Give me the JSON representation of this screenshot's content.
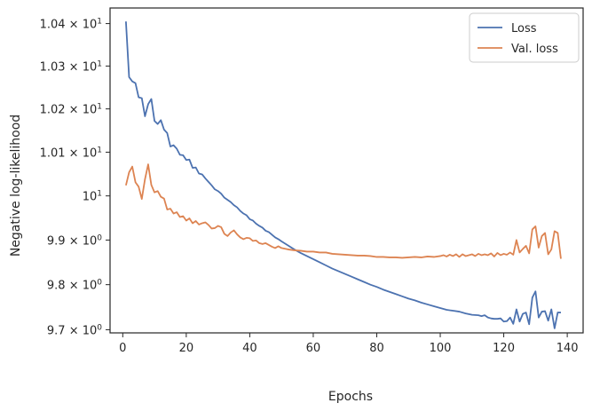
{
  "chart_data": {
    "type": "line",
    "title": "",
    "xlabel": "Epochs",
    "ylabel": "Negative log-likelihood",
    "y_scale": "log",
    "xlim": [
      -4,
      145
    ],
    "ylim": [
      9.693,
      10.437
    ],
    "x_ticks": [
      0,
      20,
      40,
      60,
      80,
      100,
      120,
      140
    ],
    "x_tick_labels": [
      "0",
      "20",
      "40",
      "60",
      "80",
      "100",
      "120",
      "140"
    ],
    "y_ticks": [
      10.4,
      10.3,
      10.2,
      10.1,
      10.0,
      9.9,
      9.8,
      9.7
    ],
    "y_tick_labels": [
      {
        "mantissa": "1.04",
        "times": "×",
        "base": "10",
        "exp": "1"
      },
      {
        "mantissa": "1.03",
        "times": "×",
        "base": "10",
        "exp": "1"
      },
      {
        "mantissa": "1.02",
        "times": "×",
        "base": "10",
        "exp": "1"
      },
      {
        "mantissa": "1.01",
        "times": "×",
        "base": "10",
        "exp": "1"
      },
      {
        "mantissa": "",
        "times": "",
        "base": "10",
        "exp": "1"
      },
      {
        "mantissa": "9.9",
        "times": "×",
        "base": "10",
        "exp": "0"
      },
      {
        "mantissa": "9.8",
        "times": "×",
        "base": "10",
        "exp": "0"
      },
      {
        "mantissa": "9.7",
        "times": "×",
        "base": "10",
        "exp": "0"
      }
    ],
    "grid": false,
    "legend_position": "top-right",
    "series": [
      {
        "name": "Loss",
        "color": "#4c72b0",
        "points": [
          [
            1,
            10.405
          ],
          [
            2,
            10.274
          ],
          [
            3,
            10.264
          ],
          [
            4,
            10.26
          ],
          [
            5,
            10.227
          ],
          [
            6,
            10.225
          ],
          [
            7,
            10.183
          ],
          [
            8,
            10.211
          ],
          [
            9,
            10.223
          ],
          [
            10,
            10.172
          ],
          [
            11,
            10.165
          ],
          [
            12,
            10.174
          ],
          [
            13,
            10.152
          ],
          [
            14,
            10.144
          ],
          [
            15,
            10.113
          ],
          [
            16,
            10.116
          ],
          [
            17,
            10.108
          ],
          [
            18,
            10.094
          ],
          [
            19,
            10.093
          ],
          [
            20,
            10.082
          ],
          [
            21,
            10.083
          ],
          [
            22,
            10.064
          ],
          [
            23,
            10.065
          ],
          [
            24,
            10.051
          ],
          [
            25,
            10.049
          ],
          [
            26,
            10.04
          ],
          [
            27,
            10.032
          ],
          [
            28,
            10.024
          ],
          [
            29,
            10.015
          ],
          [
            30,
            10.011
          ],
          [
            31,
            10.005
          ],
          [
            32,
            9.996
          ],
          [
            33,
            9.991
          ],
          [
            34,
            9.986
          ],
          [
            35,
            9.979
          ],
          [
            36,
            9.974
          ],
          [
            37,
            9.966
          ],
          [
            38,
            9.96
          ],
          [
            39,
            9.956
          ],
          [
            40,
            9.947
          ],
          [
            41,
            9.944
          ],
          [
            42,
            9.937
          ],
          [
            43,
            9.932
          ],
          [
            44,
            9.928
          ],
          [
            45,
            9.921
          ],
          [
            46,
            9.918
          ],
          [
            47,
            9.912
          ],
          [
            48,
            9.906
          ],
          [
            49,
            9.902
          ],
          [
            50,
            9.897
          ],
          [
            52,
            9.888
          ],
          [
            54,
            9.879
          ],
          [
            56,
            9.871
          ],
          [
            58,
            9.864
          ],
          [
            60,
            9.857
          ],
          [
            62,
            9.85
          ],
          [
            64,
            9.843
          ],
          [
            66,
            9.836
          ],
          [
            68,
            9.83
          ],
          [
            70,
            9.824
          ],
          [
            72,
            9.818
          ],
          [
            74,
            9.812
          ],
          [
            76,
            9.806
          ],
          [
            78,
            9.8
          ],
          [
            80,
            9.795
          ],
          [
            82,
            9.789
          ],
          [
            84,
            9.784
          ],
          [
            86,
            9.779
          ],
          [
            88,
            9.774
          ],
          [
            90,
            9.769
          ],
          [
            92,
            9.765
          ],
          [
            94,
            9.76
          ],
          [
            96,
            9.756
          ],
          [
            98,
            9.752
          ],
          [
            100,
            9.748
          ],
          [
            102,
            9.744
          ],
          [
            104,
            9.742
          ],
          [
            106,
            9.74
          ],
          [
            108,
            9.736
          ],
          [
            110,
            9.733
          ],
          [
            112,
            9.732
          ],
          [
            113,
            9.73
          ],
          [
            114,
            9.732
          ],
          [
            115,
            9.727
          ],
          [
            116,
            9.725
          ],
          [
            117,
            9.724
          ],
          [
            118,
            9.724
          ],
          [
            119,
            9.725
          ],
          [
            120,
            9.718
          ],
          [
            121,
            9.719
          ],
          [
            122,
            9.727
          ],
          [
            123,
            9.713
          ],
          [
            124,
            9.745
          ],
          [
            125,
            9.718
          ],
          [
            126,
            9.735
          ],
          [
            127,
            9.738
          ],
          [
            128,
            9.712
          ],
          [
            129,
            9.771
          ],
          [
            130,
            9.785
          ],
          [
            131,
            9.727
          ],
          [
            132,
            9.74
          ],
          [
            133,
            9.741
          ],
          [
            134,
            9.72
          ],
          [
            135,
            9.745
          ],
          [
            136,
            9.703
          ],
          [
            137,
            9.738
          ],
          [
            138,
            9.738
          ]
        ]
      },
      {
        "name": "Val. loss",
        "color": "#dd8452",
        "points": [
          [
            1,
            10.024
          ],
          [
            2,
            10.054
          ],
          [
            3,
            10.067
          ],
          [
            4,
            10.031
          ],
          [
            5,
            10.021
          ],
          [
            6,
            9.993
          ],
          [
            7,
            10.038
          ],
          [
            8,
            10.072
          ],
          [
            9,
            10.025
          ],
          [
            10,
            10.008
          ],
          [
            11,
            10.011
          ],
          [
            12,
            9.998
          ],
          [
            13,
            9.994
          ],
          [
            14,
            9.969
          ],
          [
            15,
            9.971
          ],
          [
            16,
            9.96
          ],
          [
            17,
            9.963
          ],
          [
            18,
            9.952
          ],
          [
            19,
            9.954
          ],
          [
            20,
            9.944
          ],
          [
            21,
            9.949
          ],
          [
            22,
            9.938
          ],
          [
            23,
            9.943
          ],
          [
            24,
            9.935
          ],
          [
            25,
            9.938
          ],
          [
            26,
            9.94
          ],
          [
            27,
            9.934
          ],
          [
            28,
            9.926
          ],
          [
            29,
            9.927
          ],
          [
            30,
            9.932
          ],
          [
            31,
            9.929
          ],
          [
            32,
            9.914
          ],
          [
            33,
            9.909
          ],
          [
            34,
            9.917
          ],
          [
            35,
            9.922
          ],
          [
            36,
            9.913
          ],
          [
            37,
            9.906
          ],
          [
            38,
            9.902
          ],
          [
            39,
            9.905
          ],
          [
            40,
            9.904
          ],
          [
            41,
            9.898
          ],
          [
            42,
            9.899
          ],
          [
            43,
            9.893
          ],
          [
            44,
            9.891
          ],
          [
            45,
            9.893
          ],
          [
            46,
            9.889
          ],
          [
            47,
            9.885
          ],
          [
            48,
            9.882
          ],
          [
            49,
            9.886
          ],
          [
            50,
            9.882
          ],
          [
            52,
            9.879
          ],
          [
            54,
            9.877
          ],
          [
            56,
            9.876
          ],
          [
            58,
            9.874
          ],
          [
            60,
            9.874
          ],
          [
            62,
            9.872
          ],
          [
            64,
            9.872
          ],
          [
            66,
            9.869
          ],
          [
            68,
            9.868
          ],
          [
            70,
            9.867
          ],
          [
            72,
            9.866
          ],
          [
            74,
            9.865
          ],
          [
            76,
            9.865
          ],
          [
            78,
            9.864
          ],
          [
            80,
            9.862
          ],
          [
            82,
            9.862
          ],
          [
            84,
            9.861
          ],
          [
            86,
            9.861
          ],
          [
            88,
            9.86
          ],
          [
            90,
            9.861
          ],
          [
            92,
            9.862
          ],
          [
            94,
            9.861
          ],
          [
            96,
            9.863
          ],
          [
            98,
            9.862
          ],
          [
            100,
            9.864
          ],
          [
            101,
            9.866
          ],
          [
            102,
            9.863
          ],
          [
            103,
            9.867
          ],
          [
            104,
            9.864
          ],
          [
            105,
            9.868
          ],
          [
            106,
            9.862
          ],
          [
            107,
            9.868
          ],
          [
            108,
            9.864
          ],
          [
            109,
            9.866
          ],
          [
            110,
            9.868
          ],
          [
            111,
            9.864
          ],
          [
            112,
            9.869
          ],
          [
            113,
            9.866
          ],
          [
            114,
            9.868
          ],
          [
            115,
            9.866
          ],
          [
            116,
            9.87
          ],
          [
            117,
            9.863
          ],
          [
            118,
            9.871
          ],
          [
            119,
            9.866
          ],
          [
            120,
            9.869
          ],
          [
            121,
            9.867
          ],
          [
            122,
            9.872
          ],
          [
            123,
            9.867
          ],
          [
            124,
            9.9
          ],
          [
            125,
            9.872
          ],
          [
            126,
            9.88
          ],
          [
            127,
            9.887
          ],
          [
            128,
            9.87
          ],
          [
            129,
            9.924
          ],
          [
            130,
            9.931
          ],
          [
            131,
            9.883
          ],
          [
            132,
            9.909
          ],
          [
            133,
            9.916
          ],
          [
            134,
            9.868
          ],
          [
            135,
            9.879
          ],
          [
            136,
            9.92
          ],
          [
            137,
            9.916
          ],
          [
            138,
            9.858
          ]
        ]
      }
    ]
  }
}
